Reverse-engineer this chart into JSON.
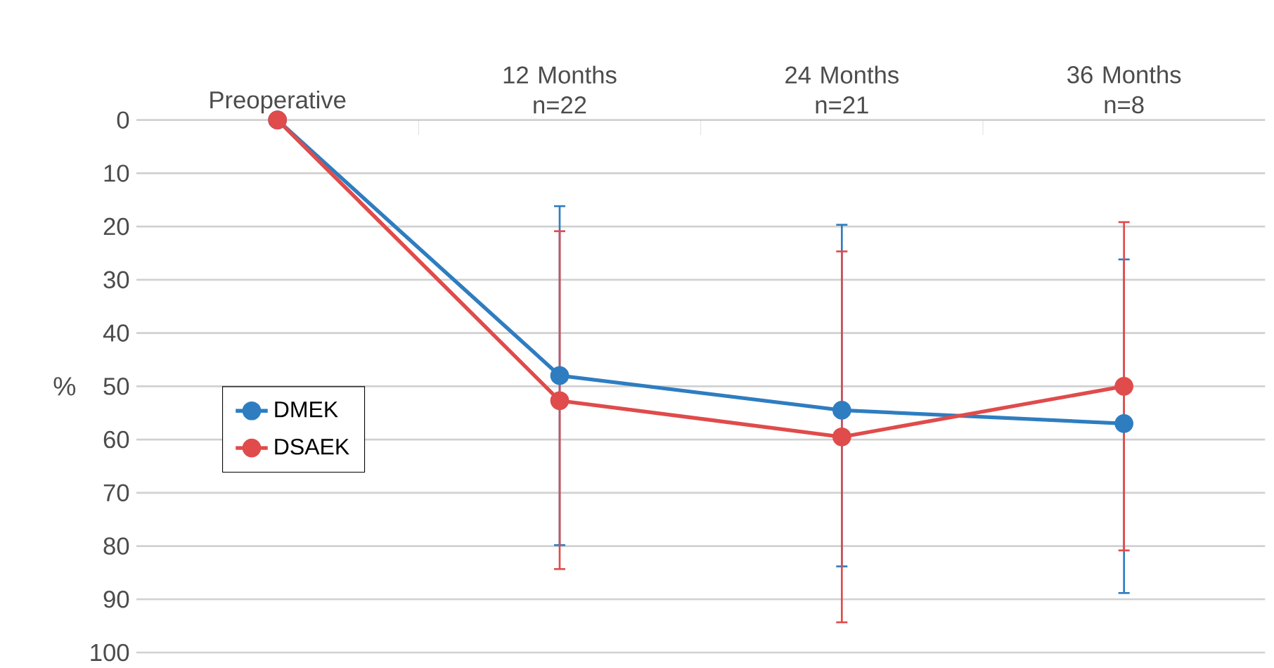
{
  "chart_data": {
    "type": "line",
    "ylabel": "%",
    "categories": [
      "Preoperative",
      "12 Months n=22",
      "24 Months n=21",
      "36 Months n=8"
    ],
    "series": [
      {
        "name": "DMEK",
        "color": "#2e7dc0",
        "values": [
          0,
          48,
          54.5,
          57
        ],
        "errors": [
          null,
          [
            16,
            80
          ],
          [
            19.5,
            84
          ],
          [
            26,
            89
          ]
        ]
      },
      {
        "name": "DSAEK",
        "color": "#e04b4b",
        "values": [
          0,
          52.7,
          59.5,
          50
        ],
        "errors": [
          null,
          [
            20.7,
            84.5
          ],
          [
            24.5,
            94.5
          ],
          [
            19,
            81
          ]
        ]
      }
    ],
    "ylim": [
      100,
      0
    ],
    "yticks": [
      0,
      10,
      20,
      30,
      40,
      50,
      60,
      70,
      80,
      90,
      100
    ],
    "grid": "y",
    "legend": "left",
    "marker": "circle",
    "line_style": "solid"
  }
}
